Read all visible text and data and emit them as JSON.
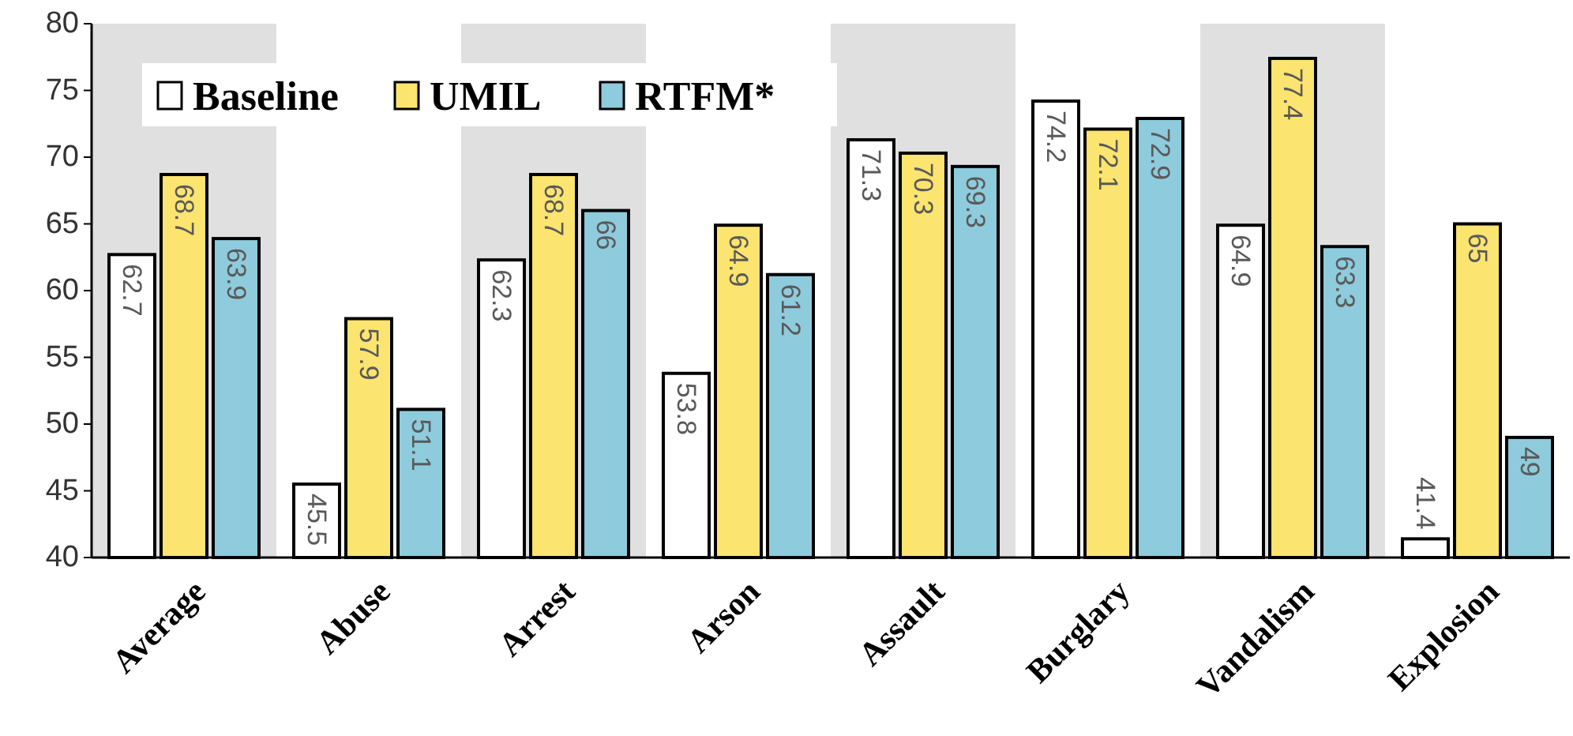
{
  "chart_data": {
    "type": "bar",
    "categories": [
      "Average",
      "Abuse",
      "Arrest",
      "Arson",
      "Assault",
      "Burglary",
      "Vandalism",
      "Explosion"
    ],
    "series": [
      {
        "name": "Baseline",
        "color": "#ffffff",
        "values": [
          62.7,
          45.5,
          62.3,
          53.8,
          71.3,
          74.2,
          64.9,
          41.4
        ]
      },
      {
        "name": "UMIL",
        "color": "#fbe46f",
        "values": [
          68.7,
          57.9,
          68.7,
          64.9,
          70.3,
          72.1,
          77.4,
          65
        ]
      },
      {
        "name": "RTFM*",
        "color": "#8ecbdc",
        "values": [
          63.9,
          51.1,
          66,
          61.2,
          69.3,
          72.9,
          63.3,
          49
        ]
      }
    ],
    "ylim": [
      40,
      80
    ],
    "yticks": [
      40,
      45,
      50,
      55,
      60,
      65,
      70,
      75,
      80
    ],
    "data_labels": true,
    "legend": "top left",
    "grid": false,
    "bands": [
      {
        "axis": "x",
        "from": "Average",
        "to": "Average",
        "color": "#e0e0e0"
      },
      {
        "axis": "x",
        "from": "Arrest",
        "to": "Arrest",
        "color": "#e0e0e0"
      },
      {
        "axis": "x",
        "from": "Assault",
        "to": "Assault",
        "color": "#e0e0e0"
      },
      {
        "axis": "x",
        "from": "Vandalism",
        "to": "Vandalism",
        "color": "#e0e0e0"
      }
    ]
  }
}
